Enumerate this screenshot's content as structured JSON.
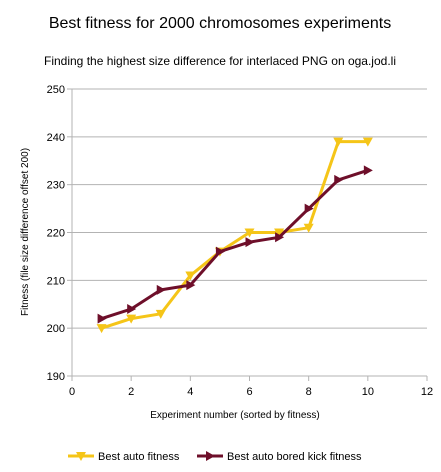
{
  "chart_data": {
    "type": "line",
    "title": "Best fitness for 2000 chromosomes experiments",
    "subtitle": "Finding the highest size difference for interlaced PNG on oga.jod.li",
    "xlabel": "Experiment number (sorted by fitness)",
    "ylabel": "Fitness (file size difference offset 200)",
    "xlim": [
      0,
      12
    ],
    "ylim": [
      190,
      250
    ],
    "x_ticks": [
      0,
      2,
      4,
      6,
      8,
      10,
      12
    ],
    "y_ticks": [
      190,
      200,
      210,
      220,
      230,
      240,
      250
    ],
    "grid": "horizontal",
    "legend_position": "bottom",
    "x": [
      1,
      2,
      3,
      4,
      5,
      6,
      7,
      8,
      9,
      10
    ],
    "series": [
      {
        "name": "Best auto fitness",
        "color": "#f5c518",
        "marker": "triangle-down",
        "values": [
          200,
          202,
          203,
          211,
          216,
          220,
          220,
          221,
          239,
          239
        ]
      },
      {
        "name": "Best auto bored kick fitness",
        "color": "#6e0f2a",
        "marker": "triangle-right",
        "values": [
          202,
          204,
          208,
          209,
          216,
          218,
          219,
          225,
          231,
          233
        ]
      }
    ]
  }
}
